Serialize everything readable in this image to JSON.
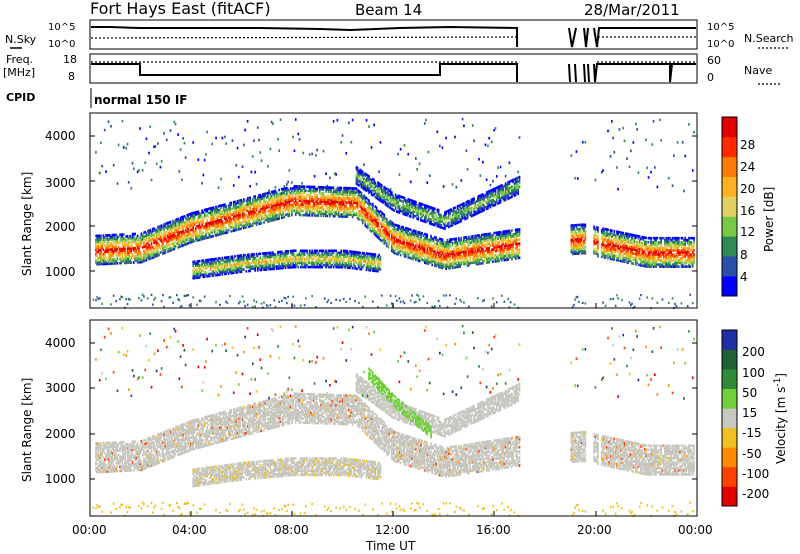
{
  "header": {
    "station": "Fort Hays East (fitACF)",
    "beam": "Beam 14",
    "date": "28/Mar/2011"
  },
  "summary_panels": {
    "nsky": {
      "label": "N.Sky",
      "ticks": [
        "10^5",
        "10^0"
      ]
    },
    "nsearch": {
      "label": "N.Search",
      "ticks": [
        "10^5",
        "10^0"
      ]
    },
    "freq": {
      "label_line1": "Freq.",
      "label_line2": "[MHz]",
      "ticks": [
        "18",
        "8"
      ]
    },
    "nave": {
      "label": "Nave",
      "ticks": [
        "60",
        "0"
      ]
    },
    "cpid": {
      "label": "CPID",
      "value": "normal 150 IF"
    }
  },
  "power_panel": {
    "ylabel": "Slant Range [km]",
    "yticks": [
      "4000",
      "3000",
      "2000",
      "1000"
    ],
    "colorbar_label": "Power [dB]",
    "colorbar_ticks": [
      "28",
      "24",
      "20",
      "16",
      "12",
      "8",
      "4"
    ],
    "colors": [
      "#0000ff",
      "#2b4ea6",
      "#2f8a54",
      "#77c944",
      "#e0d060",
      "#ffb21f",
      "#ff7a00",
      "#ff2a00",
      "#e00000"
    ]
  },
  "velocity_panel": {
    "ylabel": "Slant Range [km]",
    "yticks": [
      "4000",
      "3000",
      "2000",
      "1000"
    ],
    "colorbar_label": "Velocity [m s",
    "colorbar_label_sup": "-1",
    "colorbar_label_end": "]",
    "colorbar_ticks": [
      "200",
      "100",
      "50",
      "15",
      "-15",
      "-50",
      "-100",
      "-200"
    ],
    "colors": [
      "#1f2fa5",
      "#205f30",
      "#2f8a3a",
      "#6fcf3a",
      "#c8c8c0",
      "#f0c020",
      "#ff8c00",
      "#ff4000",
      "#e00000"
    ]
  },
  "xaxis": {
    "ticks": [
      "00:00",
      "04:00",
      "08:00",
      "12:00",
      "16:00",
      "20:00",
      "00:00"
    ],
    "label": "Time UT"
  },
  "chart_data": [
    {
      "type": "heatmap",
      "title": "Power [dB]",
      "xlabel": "Time UT",
      "ylabel": "Slant Range [km]",
      "xlim_hours": [
        0,
        24
      ],
      "ylim": [
        180,
        4500
      ],
      "zlim": [
        0,
        32
      ],
      "data_gaps_hours": [
        [
          17.0,
          19.0
        ],
        [
          19.6,
          19.9
        ],
        [
          20.1,
          20.2
        ]
      ],
      "features": [
        {
          "name": "main band",
          "t": [
            0.2,
            2,
            4,
            8,
            10.5,
            12,
            14,
            17,
            19.5,
            22,
            24
          ],
          "range_km": [
            1450,
            1500,
            1950,
            2550,
            2500,
            1700,
            1350,
            1600,
            1700,
            1400,
            1400
          ],
          "peak_db": 26
        },
        {
          "name": "lower band",
          "t": [
            4,
            6,
            8,
            10,
            11.5
          ],
          "range_km": [
            1000,
            1150,
            1250,
            1250,
            1150
          ],
          "peak_db": 18
        },
        {
          "name": "upper band",
          "t": [
            10.5,
            12,
            14,
            17
          ],
          "range_km": [
            3100,
            2500,
            2100,
            2900
          ],
          "peak_db": 12
        }
      ]
    },
    {
      "type": "heatmap",
      "title": "Velocity [m s-1]",
      "xlabel": "Time UT",
      "ylabel": "Slant Range [km]",
      "xlim_hours": [
        0,
        24
      ],
      "ylim": [
        180,
        4500
      ],
      "zlim": [
        -200,
        200
      ],
      "dominant_velocity_ms": [
        -15,
        15
      ],
      "features": [
        {
          "name": "main band",
          "t": [
            0.2,
            2,
            4,
            8,
            10.5,
            12,
            14,
            17,
            19.5,
            22,
            24
          ],
          "range_km": [
            1450,
            1500,
            1950,
            2550,
            2500,
            1700,
            1350,
            1600,
            1700,
            1400,
            1400
          ],
          "velocity_ms": 0
        },
        {
          "name": "green descending band",
          "t": [
            11,
            12,
            13.5
          ],
          "range_km": [
            3300,
            2700,
            2000
          ],
          "velocity_ms": 30
        },
        {
          "name": "lower band",
          "t": [
            4,
            6,
            8,
            10,
            11.5
          ],
          "range_km": [
            1000,
            1150,
            1250,
            1250,
            1150
          ],
          "velocity_ms": 0
        }
      ]
    }
  ]
}
